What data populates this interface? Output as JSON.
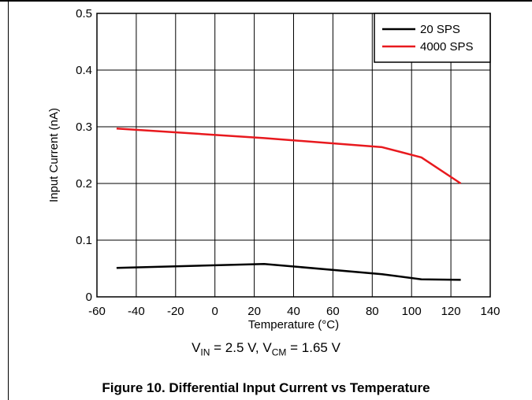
{
  "chart_data": {
    "type": "line",
    "xlabel": "Temperature (°C)",
    "ylabel": "Input Current (nA)",
    "xlim": [
      -60,
      140
    ],
    "ylim": [
      0,
      0.5
    ],
    "xticks": [
      "-60",
      "-40",
      "-20",
      "0",
      "20",
      "40",
      "60",
      "80",
      "100",
      "120",
      "140"
    ],
    "yticks": [
      "0",
      "0.1",
      "0.2",
      "0.3",
      "0.4",
      "0.5"
    ],
    "grid": true,
    "legend_position": "top-right",
    "series": [
      {
        "name": "20 SPS",
        "color": "#000000",
        "x": [
          -50,
          25,
          85,
          105,
          125
        ],
        "y": [
          0.051,
          0.058,
          0.04,
          0.031,
          0.03
        ]
      },
      {
        "name": "4000 SPS",
        "color": "#e8191e",
        "x": [
          -50,
          25,
          85,
          105,
          125
        ],
        "y": [
          0.297,
          0.28,
          0.264,
          0.246,
          0.2
        ]
      }
    ]
  },
  "conditions": {
    "vin_sym": "V",
    "vin_sub": "IN",
    "vin_val": " = 2.5 V, ",
    "vcm_sym": "V",
    "vcm_sub": "CM",
    "vcm_val": " = 1.65 V"
  },
  "caption": "Figure 10. Differential Input Current vs Temperature"
}
